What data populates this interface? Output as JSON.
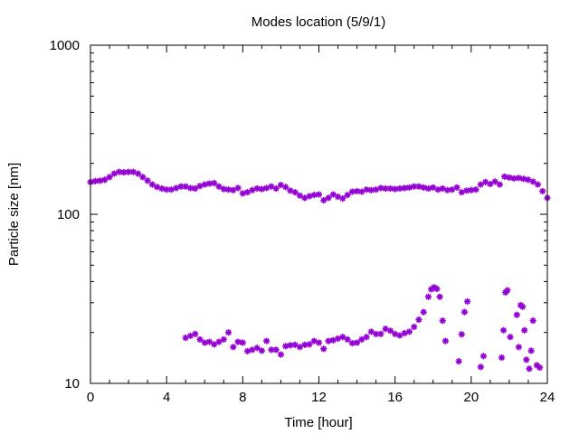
{
  "chart_data": {
    "type": "scatter",
    "title": "Modes location (5/9/1)",
    "xlabel": "Time [hour]",
    "ylabel": "Particle size [nm]",
    "xlim": [
      0,
      24
    ],
    "ylim": [
      10,
      1000
    ],
    "yscale": "log",
    "grid": false,
    "legend": "none",
    "marker": "asterisk",
    "color": "#9400d3",
    "xticks": [
      0,
      4,
      8,
      12,
      16,
      20,
      24
    ],
    "xtick_labels": [
      "0",
      "4",
      "8",
      "12",
      "16",
      "20",
      "24"
    ],
    "yticks": [
      10,
      100,
      1000
    ],
    "ytick_labels": [
      "10",
      "100",
      "1000"
    ],
    "series": [
      {
        "points": [
          [
            0.0,
            155
          ],
          [
            0.25,
            157
          ],
          [
            0.5,
            158
          ],
          [
            0.75,
            160
          ],
          [
            1.0,
            166
          ],
          [
            1.25,
            174
          ],
          [
            1.5,
            178
          ],
          [
            1.75,
            177
          ],
          [
            2.0,
            178
          ],
          [
            2.25,
            178
          ],
          [
            2.5,
            174
          ],
          [
            2.75,
            166
          ],
          [
            3.0,
            158
          ],
          [
            3.25,
            150
          ],
          [
            3.5,
            145
          ],
          [
            3.75,
            142
          ],
          [
            4.0,
            140
          ],
          [
            4.25,
            140
          ],
          [
            4.5,
            143
          ],
          [
            4.75,
            146
          ],
          [
            5.0,
            146
          ],
          [
            5.25,
            143
          ],
          [
            5.5,
            142
          ],
          [
            5.75,
            147
          ],
          [
            6.0,
            150
          ],
          [
            6.25,
            152
          ],
          [
            6.5,
            153
          ],
          [
            6.75,
            146
          ],
          [
            7.0,
            141
          ],
          [
            7.25,
            140
          ],
          [
            7.5,
            139
          ],
          [
            7.75,
            143
          ],
          [
            8.0,
            133
          ],
          [
            8.25,
            135
          ],
          [
            8.5,
            139
          ],
          [
            8.75,
            142
          ],
          [
            9.0,
            141
          ],
          [
            9.25,
            143
          ],
          [
            9.5,
            146
          ],
          [
            9.75,
            142
          ],
          [
            10.0,
            149
          ],
          [
            10.25,
            145
          ],
          [
            10.5,
            138
          ],
          [
            10.75,
            135
          ],
          [
            11.0,
            129
          ],
          [
            11.25,
            125
          ],
          [
            11.5,
            128
          ],
          [
            11.75,
            130
          ],
          [
            12.0,
            131
          ],
          [
            12.25,
            121
          ],
          [
            12.5,
            125
          ],
          [
            12.75,
            131
          ],
          [
            13.0,
            127
          ],
          [
            13.25,
            124
          ],
          [
            13.5,
            130
          ],
          [
            13.75,
            136
          ],
          [
            14.0,
            137
          ],
          [
            14.25,
            136
          ],
          [
            14.5,
            140
          ],
          [
            14.75,
            139
          ],
          [
            15.0,
            140
          ],
          [
            15.25,
            143
          ],
          [
            15.5,
            142
          ],
          [
            15.75,
            142
          ],
          [
            16.0,
            141
          ],
          [
            16.25,
            142
          ],
          [
            16.5,
            143
          ],
          [
            16.75,
            144
          ],
          [
            17.0,
            146
          ],
          [
            17.25,
            146
          ],
          [
            17.5,
            144
          ],
          [
            17.75,
            142
          ],
          [
            18.0,
            144
          ],
          [
            18.25,
            140
          ],
          [
            18.5,
            142
          ],
          [
            18.75,
            139
          ],
          [
            19.0,
            140
          ],
          [
            19.25,
            144
          ],
          [
            19.5,
            135
          ],
          [
            19.75,
            138
          ],
          [
            20.0,
            139
          ],
          [
            20.25,
            140
          ],
          [
            20.5,
            150
          ],
          [
            20.75,
            155
          ],
          [
            21.0,
            151
          ],
          [
            21.25,
            156
          ],
          [
            21.5,
            150
          ],
          [
            21.75,
            167
          ],
          [
            22.0,
            165
          ],
          [
            22.25,
            163
          ],
          [
            22.5,
            164
          ],
          [
            22.75,
            162
          ],
          [
            23.0,
            160
          ],
          [
            23.25,
            156
          ],
          [
            23.5,
            150
          ],
          [
            23.75,
            137
          ],
          [
            24.0,
            125
          ]
        ]
      },
      {
        "points": [
          [
            5.0,
            18.6
          ],
          [
            5.25,
            19.1
          ],
          [
            5.5,
            19.6
          ],
          [
            5.75,
            18.2
          ],
          [
            6.0,
            17.4
          ],
          [
            6.25,
            17.6
          ],
          [
            6.5,
            17.0
          ],
          [
            6.75,
            17.6
          ],
          [
            7.0,
            18.2
          ],
          [
            7.25,
            20.0
          ],
          [
            7.5,
            16.4
          ],
          [
            7.75,
            17.6
          ],
          [
            8.0,
            17.4
          ],
          [
            8.25,
            15.5
          ],
          [
            8.5,
            15.8
          ],
          [
            8.75,
            16.2
          ],
          [
            9.0,
            15.6
          ],
          [
            9.25,
            17.8
          ],
          [
            9.5,
            15.8
          ],
          [
            9.75,
            15.8
          ],
          [
            10.0,
            14.8
          ],
          [
            10.25,
            16.6
          ],
          [
            10.5,
            16.8
          ],
          [
            10.75,
            16.9
          ],
          [
            11.0,
            16.4
          ],
          [
            11.25,
            16.9
          ],
          [
            11.5,
            17.0
          ],
          [
            11.75,
            17.8
          ],
          [
            12.0,
            17.4
          ],
          [
            12.25,
            16.0
          ],
          [
            12.5,
            17.8
          ],
          [
            12.75,
            18.0
          ],
          [
            13.0,
            18.4
          ],
          [
            13.25,
            18.8
          ],
          [
            13.5,
            18.2
          ],
          [
            13.75,
            17.3
          ],
          [
            14.0,
            17.4
          ],
          [
            14.25,
            18.2
          ],
          [
            14.5,
            18.8
          ],
          [
            14.75,
            20.2
          ],
          [
            15.0,
            19.6
          ],
          [
            15.25,
            19.6
          ],
          [
            15.5,
            21.0
          ],
          [
            15.75,
            20.5
          ],
          [
            16.0,
            19.6
          ],
          [
            16.25,
            19.2
          ],
          [
            16.5,
            19.8
          ],
          [
            16.75,
            20.2
          ],
          [
            17.0,
            21.6
          ],
          [
            17.25,
            23.8
          ],
          [
            17.5,
            26.4
          ],
          [
            17.75,
            32.5
          ],
          [
            17.9,
            36.0
          ],
          [
            18.05,
            37.0
          ],
          [
            18.2,
            36.2
          ],
          [
            18.35,
            32.5
          ],
          [
            18.5,
            23.5
          ],
          [
            18.65,
            17.8
          ],
          [
            19.35,
            13.5
          ],
          [
            19.5,
            19.5
          ],
          [
            19.65,
            26.4
          ],
          [
            19.8,
            30.5
          ],
          [
            20.5,
            12.5
          ],
          [
            20.65,
            14.5
          ],
          [
            21.6,
            14.2
          ],
          [
            21.7,
            20.6
          ],
          [
            21.8,
            34.5
          ],
          [
            21.9,
            35.5
          ],
          [
            22.05,
            18.8
          ],
          [
            22.4,
            25.4
          ],
          [
            22.5,
            16.4
          ],
          [
            22.6,
            29.0
          ],
          [
            22.7,
            28.4
          ],
          [
            22.8,
            20.6
          ],
          [
            22.9,
            13.8
          ],
          [
            23.05,
            12.2
          ],
          [
            23.15,
            15.6
          ],
          [
            23.25,
            23.5
          ],
          [
            23.45,
            12.8
          ],
          [
            23.6,
            12.4
          ]
        ]
      }
    ]
  }
}
